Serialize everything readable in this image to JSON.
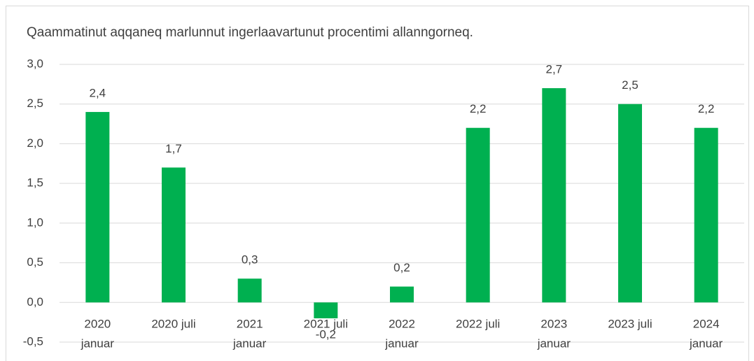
{
  "chart_data": {
    "type": "bar",
    "title": "Qaammatinut aqqaneq marlunnut ingerlaavartunut procentimi allanngorneq.",
    "categories": [
      [
        "2020",
        "januar"
      ],
      [
        "2020 juli"
      ],
      [
        "2021",
        "januar"
      ],
      [
        "2021 juli"
      ],
      [
        "2022",
        "januar"
      ],
      [
        "2022 juli"
      ],
      [
        "2023",
        "januar"
      ],
      [
        "2023 juli"
      ],
      [
        "2024",
        "januar"
      ]
    ],
    "values": [
      2.4,
      1.7,
      0.3,
      -0.2,
      0.2,
      2.2,
      2.7,
      2.5,
      2.2
    ],
    "value_labels": [
      "2,4",
      "1,7",
      "0,3",
      "-0,2",
      "0,2",
      "2,2",
      "2,7",
      "2,5",
      "2,2"
    ],
    "color": "#00b050",
    "ylim": [
      -0.5,
      3.0
    ],
    "yticks": [
      {
        "value": -0.5,
        "label": "-0,5"
      },
      {
        "value": 0,
        "label": "0,0"
      },
      {
        "value": 0.5,
        "label": "0,5"
      },
      {
        "value": 1.0,
        "label": "1,0"
      },
      {
        "value": 1.5,
        "label": "1,5"
      },
      {
        "value": 2.0,
        "label": "2,0"
      },
      {
        "value": 2.5,
        "label": "2,5"
      },
      {
        "value": 3.0,
        "label": "3,0"
      }
    ],
    "grid": true
  }
}
